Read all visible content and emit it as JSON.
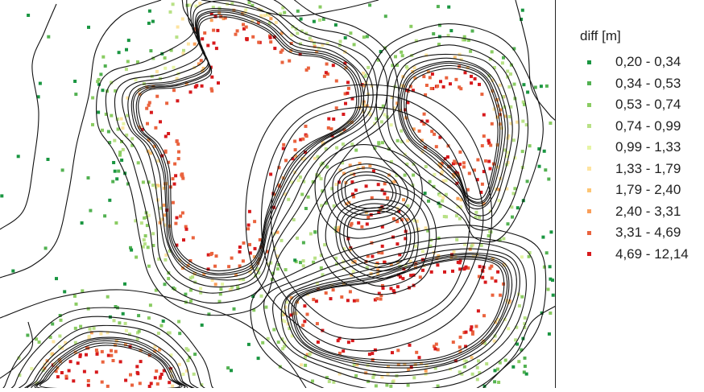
{
  "legend": {
    "title": "diff [m]",
    "classes": [
      {
        "label": "0,20 - 0,34",
        "color": "#1a9641"
      },
      {
        "label": "0,34 - 0,53",
        "color": "#52b151"
      },
      {
        "label": "0,53 - 0,74",
        "color": "#8acc62"
      },
      {
        "label": "0,74 - 0,99",
        "color": "#b8e186"
      },
      {
        "label": "0,99 - 1,33",
        "color": "#e6f5a5"
      },
      {
        "label": "1,33 - 1,79",
        "color": "#fee4a0"
      },
      {
        "label": "1,79 - 2,40",
        "color": "#fdc574"
      },
      {
        "label": "2,40 - 3,31",
        "color": "#f99e59"
      },
      {
        "label": "3,31 - 4,69",
        "color": "#ea633e"
      },
      {
        "label": "4,69 - 12,14",
        "color": "#d7191c"
      }
    ]
  },
  "colors": {
    "contour": "#111111",
    "background": "#ffffff"
  }
}
